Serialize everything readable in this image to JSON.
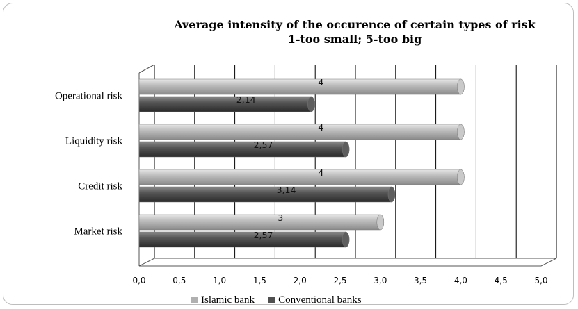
{
  "chart_data": {
    "type": "bar",
    "orientation": "horizontal",
    "title": "Average intensity of the occurence of certain types of risk",
    "subtitle": "1-too small; 5-too big",
    "categories": [
      "Operational risk",
      "Liquidity risk",
      "Credit risk",
      "Market risk"
    ],
    "series": [
      {
        "name": "Islamic bank",
        "values": [
          4,
          4,
          4,
          3
        ],
        "labels": [
          "4",
          "4",
          "4",
          "3"
        ],
        "color": "#b0b0b0"
      },
      {
        "name": "Conventional banks",
        "values": [
          2.14,
          2.57,
          3.14,
          2.57
        ],
        "labels": [
          "2,14",
          "2,57",
          "3,14",
          "2,57"
        ],
        "color": "#505050"
      }
    ],
    "xlim": [
      0,
      5
    ],
    "xticks": [
      0,
      0.5,
      1.0,
      1.5,
      2.0,
      2.5,
      3.0,
      3.5,
      4.0,
      4.5,
      5.0
    ],
    "xtick_labels": [
      "0,0",
      "0,5",
      "1,0",
      "1,5",
      "2,0",
      "2,5",
      "3,0",
      "3,5",
      "4,0",
      "4,5",
      "5,0"
    ],
    "xlabel": "",
    "ylabel": "",
    "grid": true,
    "style": "3d-cylinder",
    "legend_position": "bottom"
  }
}
